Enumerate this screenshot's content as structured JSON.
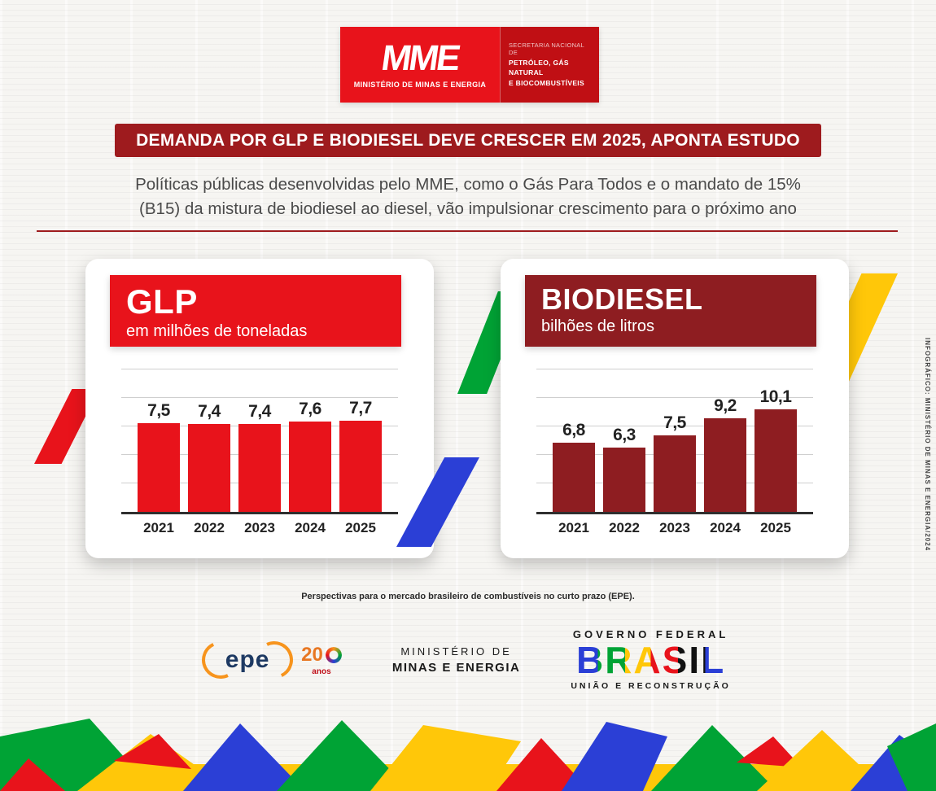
{
  "logo": {
    "acronym": "MME",
    "ministry": "MINISTÉRIO DE MINAS E ENERGIA",
    "secretariat_small": "SECRETARIA NACIONAL DE",
    "secretariat_bold1": "PETRÓLEO, GÁS NATURAL",
    "secretariat_bold2": "E BIOCOMBUSTÍVEIS"
  },
  "headline": "DEMANDA POR GLP E BIODIESEL DEVE CRESCER EM 2025, APONTA ESTUDO",
  "subtitle": "Políticas públicas desenvolvidas pelo MME, como o Gás Para Todos e o mandato de 15%\n(B15) da mistura de biodiesel ao diesel, vão impulsionar crescimento para o próximo ano",
  "chart_data": [
    {
      "type": "bar",
      "title": "GLP",
      "subtitle": "em milhões de toneladas",
      "categories": [
        "2021",
        "2022",
        "2023",
        "2024",
        "2025"
      ],
      "values": [
        7.5,
        7.4,
        7.4,
        7.6,
        7.7
      ],
      "value_labels": [
        "7,5",
        "7,4",
        "7,4",
        "7,6",
        "7,7"
      ],
      "bar_color": "#e8131b",
      "xlabel": "",
      "ylabel": "milhões de toneladas",
      "ylim": [
        0,
        12
      ],
      "grid": true,
      "legend": false
    },
    {
      "type": "bar",
      "title": "BIODIESEL",
      "subtitle": "bilhões de litros",
      "categories": [
        "2021",
        "2022",
        "2023",
        "2024",
        "2025"
      ],
      "values": [
        6.8,
        6.3,
        7.5,
        9.2,
        10.1
      ],
      "value_labels": [
        "6,8",
        "6,3",
        "7,5",
        "9,2",
        "10,1"
      ],
      "bar_color": "#8e1d21",
      "xlabel": "",
      "ylabel": "bilhões de litros",
      "ylim": [
        0,
        14
      ],
      "grid": true,
      "legend": false
    }
  ],
  "source_note": "Perspectivas para o mercado brasileiro de combustíveis no curto prazo (EPE).",
  "footer": {
    "epe": "epe",
    "epe_years_number": "20",
    "epe_years_label": "anos",
    "ministry_line1": "MINISTÉRIO DE",
    "ministry_line2": "MINAS E ENERGIA",
    "government_line1": "GOVERNO FEDERAL",
    "government_brand": "BRASIL",
    "government_line2": "UNIÃO E RECONSTRUÇÃO"
  },
  "credit_vertical": "INFOGRÁFICO: MINISTÉRIO DE MINAS E ENERGIA/2024",
  "colors": {
    "bright_red": "#e8131b",
    "dark_red": "#9e1b1e",
    "green": "#00a335",
    "blue": "#2b3fd6",
    "yellow": "#ffc709"
  }
}
